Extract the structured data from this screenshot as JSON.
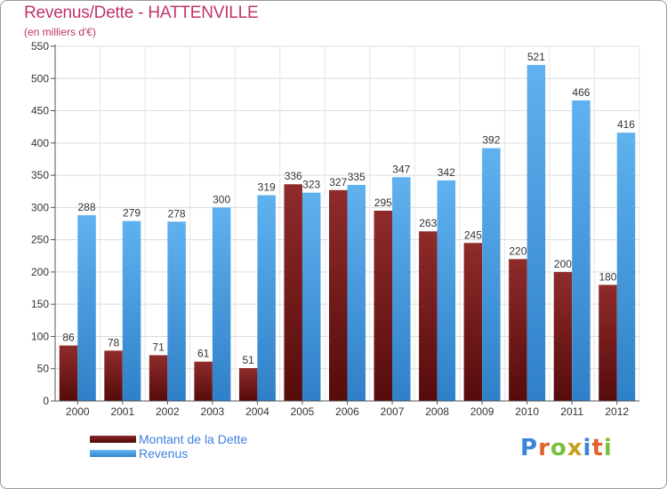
{
  "header": {
    "title": "Revenus/Dette - HATTENVILLE",
    "subtitle": "(en milliers d'€)"
  },
  "legend": {
    "items": [
      {
        "label": "Montant de la Dette",
        "color": "#7a1a1a"
      },
      {
        "label": "Revenus",
        "color": "#4fa3e6"
      }
    ]
  },
  "logo": {
    "text": "Proxiti",
    "letter_colors": [
      "#3b86d9",
      "#e0642a",
      "#7bbf3a",
      "#c8a020",
      "#3b86d9",
      "#e0642a",
      "#7bbf3a"
    ]
  },
  "chart_data": {
    "type": "bar",
    "categories": [
      "2000",
      "2001",
      "2002",
      "2003",
      "2004",
      "2005",
      "2006",
      "2007",
      "2008",
      "2009",
      "2010",
      "2011",
      "2012"
    ],
    "series": [
      {
        "name": "Montant de la Dette",
        "values": [
          86,
          78,
          71,
          61,
          51,
          336,
          327,
          295,
          263,
          245,
          220,
          200,
          180
        ],
        "color": "#7a1a1a"
      },
      {
        "name": "Revenus",
        "values": [
          288,
          279,
          278,
          300,
          319,
          323,
          335,
          347,
          342,
          392,
          521,
          466,
          416
        ],
        "color": "#4fa3e6"
      }
    ],
    "title": "Revenus/Dette - HATTENVILLE",
    "subtitle": "(en milliers d'€)",
    "ylim": [
      0,
      550
    ],
    "yticks": [
      0,
      50,
      100,
      150,
      200,
      250,
      300,
      350,
      400,
      450,
      500,
      550
    ],
    "grid": true,
    "legend_position": "bottom-left"
  }
}
